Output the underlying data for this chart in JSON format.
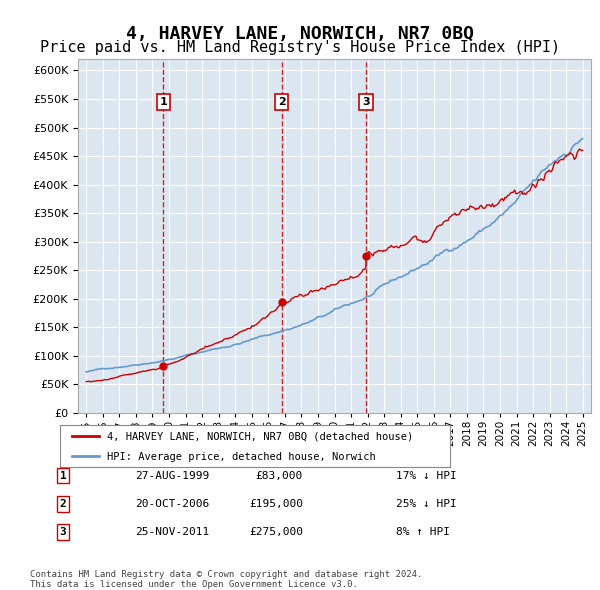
{
  "title": "4, HARVEY LANE, NORWICH, NR7 0BQ",
  "subtitle": "Price paid vs. HM Land Registry's House Price Index (HPI)",
  "legend_line1": "4, HARVEY LANE, NORWICH, NR7 0BQ (detached house)",
  "legend_line2": "HPI: Average price, detached house, Norwich",
  "footer1": "Contains HM Land Registry data © Crown copyright and database right 2024.",
  "footer2": "This data is licensed under the Open Government Licence v3.0.",
  "transactions": [
    {
      "num": 1,
      "date": "27-AUG-1999",
      "price": 83000,
      "label": "17% ↓ HPI"
    },
    {
      "num": 2,
      "date": "20-OCT-2006",
      "price": 195000,
      "label": "25% ↓ HPI"
    },
    {
      "num": 3,
      "date": "25-NOV-2011",
      "price": 275000,
      "label": "8% ↑ HPI"
    }
  ],
  "transaction_years": [
    1999.65,
    2006.8,
    2011.9
  ],
  "transaction_prices": [
    83000,
    195000,
    275000
  ],
  "property_color": "#cc0000",
  "hpi_color": "#6699cc",
  "plot_bg": "#dce6f1",
  "ylim": [
    0,
    620000
  ],
  "yticks": [
    0,
    50000,
    100000,
    150000,
    200000,
    250000,
    300000,
    350000,
    400000,
    450000,
    500000,
    550000,
    600000
  ],
  "xlim": [
    1994.5,
    2025.5
  ],
  "title_fontsize": 13,
  "subtitle_fontsize": 11
}
